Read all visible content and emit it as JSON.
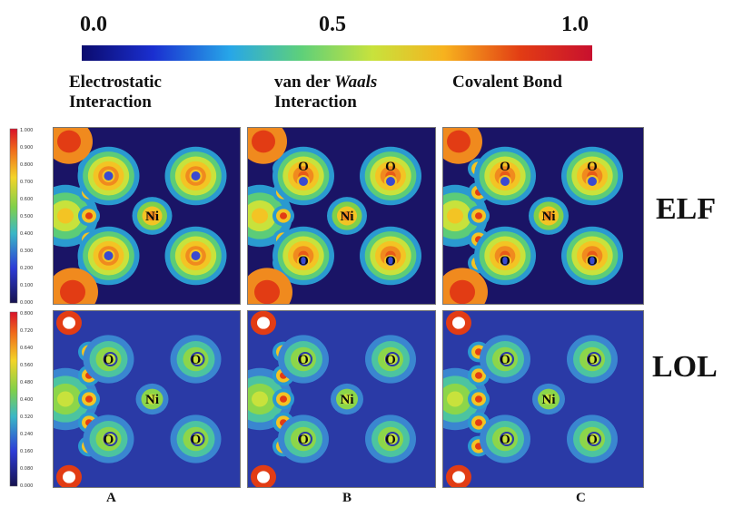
{
  "scale": {
    "min_label": "0.0",
    "mid_label": "0.5",
    "max_label": "1.0",
    "gradient": [
      "#0b0b6e",
      "#1a2fd0",
      "#27a6e8",
      "#5ed07a",
      "#c8e23c",
      "#f7b21e",
      "#e23c14",
      "#c8102e"
    ]
  },
  "bands": {
    "electrostatic_line1": "Electrostatic",
    "electrostatic_line2": "Interaction",
    "vdw_prefix": "van der ",
    "vdw_italic": "Waals",
    "vdw_line2": "Interaction",
    "covalent": "Covalent Bond"
  },
  "rows": {
    "elf": "ELF",
    "lol": "LOL"
  },
  "columns": {
    "a": "A",
    "b": "B",
    "c": "C"
  },
  "atoms": {
    "ni": "Ni",
    "o": "O"
  },
  "elf_colorbar_ticks": [
    "1.000",
    "0.900",
    "0.800",
    "0.700",
    "0.600",
    "0.500",
    "0.400",
    "0.300",
    "0.200",
    "0.100",
    "0.000"
  ],
  "lol_colorbar_ticks": [
    "0.800",
    "0.720",
    "0.640",
    "0.560",
    "0.480",
    "0.400",
    "0.320",
    "0.240",
    "0.160",
    "0.080",
    "0.000"
  ]
}
